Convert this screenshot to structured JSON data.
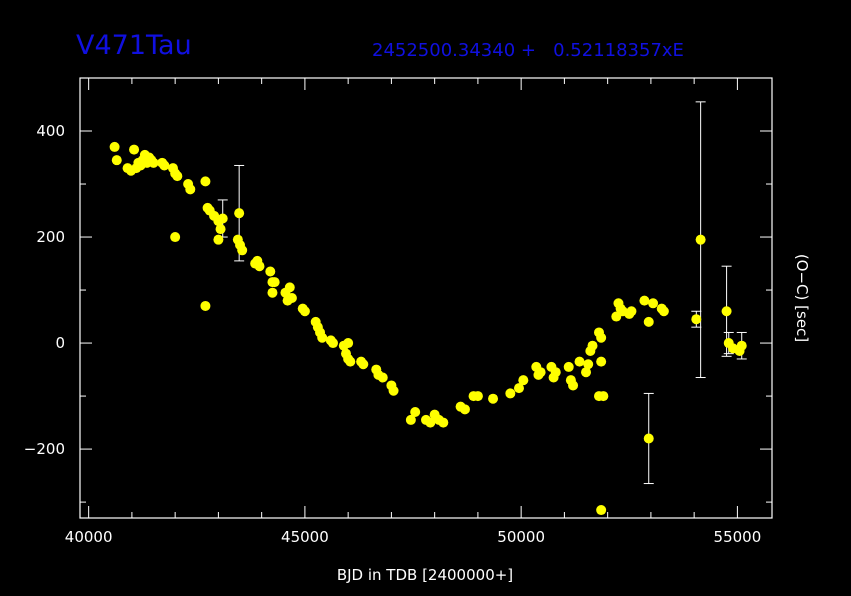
{
  "header": {
    "title": "V471Tau",
    "ephemeris": "2452500.34340 +   0.52118357xE"
  },
  "colors": {
    "background": "#000000",
    "axes": "#ffffff",
    "points": "#ffff00",
    "header_text": "#1010e0"
  },
  "chart_data": {
    "type": "scatter",
    "title": "",
    "xlabel": "BJD in TDB [2400000+]",
    "ylabel": "(O−C) [sec]",
    "xlim": [
      39800,
      55800
    ],
    "ylim": [
      -330,
      500
    ],
    "xticks": [
      "40000",
      "45000",
      "50000",
      "55000"
    ],
    "yticks": [
      "−200",
      "0",
      "200",
      "400"
    ],
    "grid": false,
    "point_color": "#ffff00",
    "points": [
      {
        "x": 40600,
        "y": 370
      },
      {
        "x": 40650,
        "y": 345
      },
      {
        "x": 40900,
        "y": 330
      },
      {
        "x": 40980,
        "y": 325
      },
      {
        "x": 41050,
        "y": 365
      },
      {
        "x": 41100,
        "y": 330
      },
      {
        "x": 41150,
        "y": 340
      },
      {
        "x": 41200,
        "y": 335
      },
      {
        "x": 41250,
        "y": 345
      },
      {
        "x": 41300,
        "y": 355
      },
      {
        "x": 41350,
        "y": 340
      },
      {
        "x": 41400,
        "y": 350
      },
      {
        "x": 41450,
        "y": 345
      },
      {
        "x": 41500,
        "y": 340
      },
      {
        "x": 41700,
        "y": 340
      },
      {
        "x": 41750,
        "y": 335
      },
      {
        "x": 41950,
        "y": 330
      },
      {
        "x": 42000,
        "y": 320
      },
      {
        "x": 42050,
        "y": 315
      },
      {
        "x": 42000,
        "y": 200
      },
      {
        "x": 42300,
        "y": 300
      },
      {
        "x": 42350,
        "y": 290
      },
      {
        "x": 42700,
        "y": 305
      },
      {
        "x": 42700,
        "y": 70
      },
      {
        "x": 42750,
        "y": 255
      },
      {
        "x": 42800,
        "y": 250
      },
      {
        "x": 42900,
        "y": 240
      },
      {
        "x": 43000,
        "y": 230
      },
      {
        "x": 43050,
        "y": 215
      },
      {
        "x": 43000,
        "y": 195
      },
      {
        "x": 43100,
        "y": 235,
        "err": 35
      },
      {
        "x": 43450,
        "y": 195
      },
      {
        "x": 43500,
        "y": 185
      },
      {
        "x": 43550,
        "y": 175
      },
      {
        "x": 43480,
        "y": 245,
        "err": 90
      },
      {
        "x": 43850,
        "y": 150
      },
      {
        "x": 43900,
        "y": 155
      },
      {
        "x": 43950,
        "y": 145
      },
      {
        "x": 44200,
        "y": 135
      },
      {
        "x": 44250,
        "y": 115
      },
      {
        "x": 44300,
        "y": 115
      },
      {
        "x": 44250,
        "y": 95
      },
      {
        "x": 44550,
        "y": 95
      },
      {
        "x": 44600,
        "y": 80
      },
      {
        "x": 44650,
        "y": 105
      },
      {
        "x": 44700,
        "y": 85
      },
      {
        "x": 44950,
        "y": 65
      },
      {
        "x": 45000,
        "y": 60
      },
      {
        "x": 45250,
        "y": 40
      },
      {
        "x": 45300,
        "y": 30
      },
      {
        "x": 45350,
        "y": 20
      },
      {
        "x": 45400,
        "y": 10
      },
      {
        "x": 45600,
        "y": 5
      },
      {
        "x": 45650,
        "y": 0
      },
      {
        "x": 45900,
        "y": -5
      },
      {
        "x": 45950,
        "y": -20
      },
      {
        "x": 46000,
        "y": 0
      },
      {
        "x": 46050,
        "y": -35
      },
      {
        "x": 46000,
        "y": -30
      },
      {
        "x": 46300,
        "y": -35
      },
      {
        "x": 46350,
        "y": -40
      },
      {
        "x": 46650,
        "y": -50
      },
      {
        "x": 46700,
        "y": -60
      },
      {
        "x": 46800,
        "y": -65
      },
      {
        "x": 47000,
        "y": -80
      },
      {
        "x": 47050,
        "y": -90
      },
      {
        "x": 47450,
        "y": -145
      },
      {
        "x": 47550,
        "y": -130
      },
      {
        "x": 47800,
        "y": -145
      },
      {
        "x": 47900,
        "y": -150
      },
      {
        "x": 48000,
        "y": -135
      },
      {
        "x": 48100,
        "y": -145
      },
      {
        "x": 48200,
        "y": -150
      },
      {
        "x": 48600,
        "y": -120
      },
      {
        "x": 48700,
        "y": -125
      },
      {
        "x": 48900,
        "y": -100
      },
      {
        "x": 49000,
        "y": -100
      },
      {
        "x": 49350,
        "y": -105
      },
      {
        "x": 49750,
        "y": -95
      },
      {
        "x": 49950,
        "y": -85
      },
      {
        "x": 50050,
        "y": -70
      },
      {
        "x": 50350,
        "y": -45
      },
      {
        "x": 50400,
        "y": -60
      },
      {
        "x": 50450,
        "y": -55
      },
      {
        "x": 50700,
        "y": -45
      },
      {
        "x": 50750,
        "y": -65
      },
      {
        "x": 50800,
        "y": -55
      },
      {
        "x": 51100,
        "y": -45
      },
      {
        "x": 51150,
        "y": -70
      },
      {
        "x": 51200,
        "y": -80
      },
      {
        "x": 51350,
        "y": -35
      },
      {
        "x": 51500,
        "y": -55
      },
      {
        "x": 51550,
        "y": -40
      },
      {
        "x": 51600,
        "y": -15
      },
      {
        "x": 51650,
        "y": -5
      },
      {
        "x": 51800,
        "y": 20
      },
      {
        "x": 51850,
        "y": 10
      },
      {
        "x": 51850,
        "y": -35
      },
      {
        "x": 51800,
        "y": -100
      },
      {
        "x": 51900,
        "y": -100
      },
      {
        "x": 51850,
        "y": -315
      },
      {
        "x": 52200,
        "y": 50
      },
      {
        "x": 52250,
        "y": 75
      },
      {
        "x": 52300,
        "y": 65
      },
      {
        "x": 52350,
        "y": 60
      },
      {
        "x": 52500,
        "y": 55
      },
      {
        "x": 52550,
        "y": 60
      },
      {
        "x": 52850,
        "y": 80
      },
      {
        "x": 52950,
        "y": 40
      },
      {
        "x": 53050,
        "y": 75
      },
      {
        "x": 52950,
        "y": -180,
        "err": 85
      },
      {
        "x": 53250,
        "y": 65
      },
      {
        "x": 53300,
        "y": 60
      },
      {
        "x": 54050,
        "y": 45,
        "err": 15
      },
      {
        "x": 54150,
        "y": 195,
        "err": 260
      },
      {
        "x": 54750,
        "y": 60,
        "err": 85
      },
      {
        "x": 54800,
        "y": 0,
        "err": 20
      },
      {
        "x": 54900,
        "y": -10
      },
      {
        "x": 55050,
        "y": -15
      },
      {
        "x": 55100,
        "y": -5,
        "err": 25
      }
    ]
  }
}
